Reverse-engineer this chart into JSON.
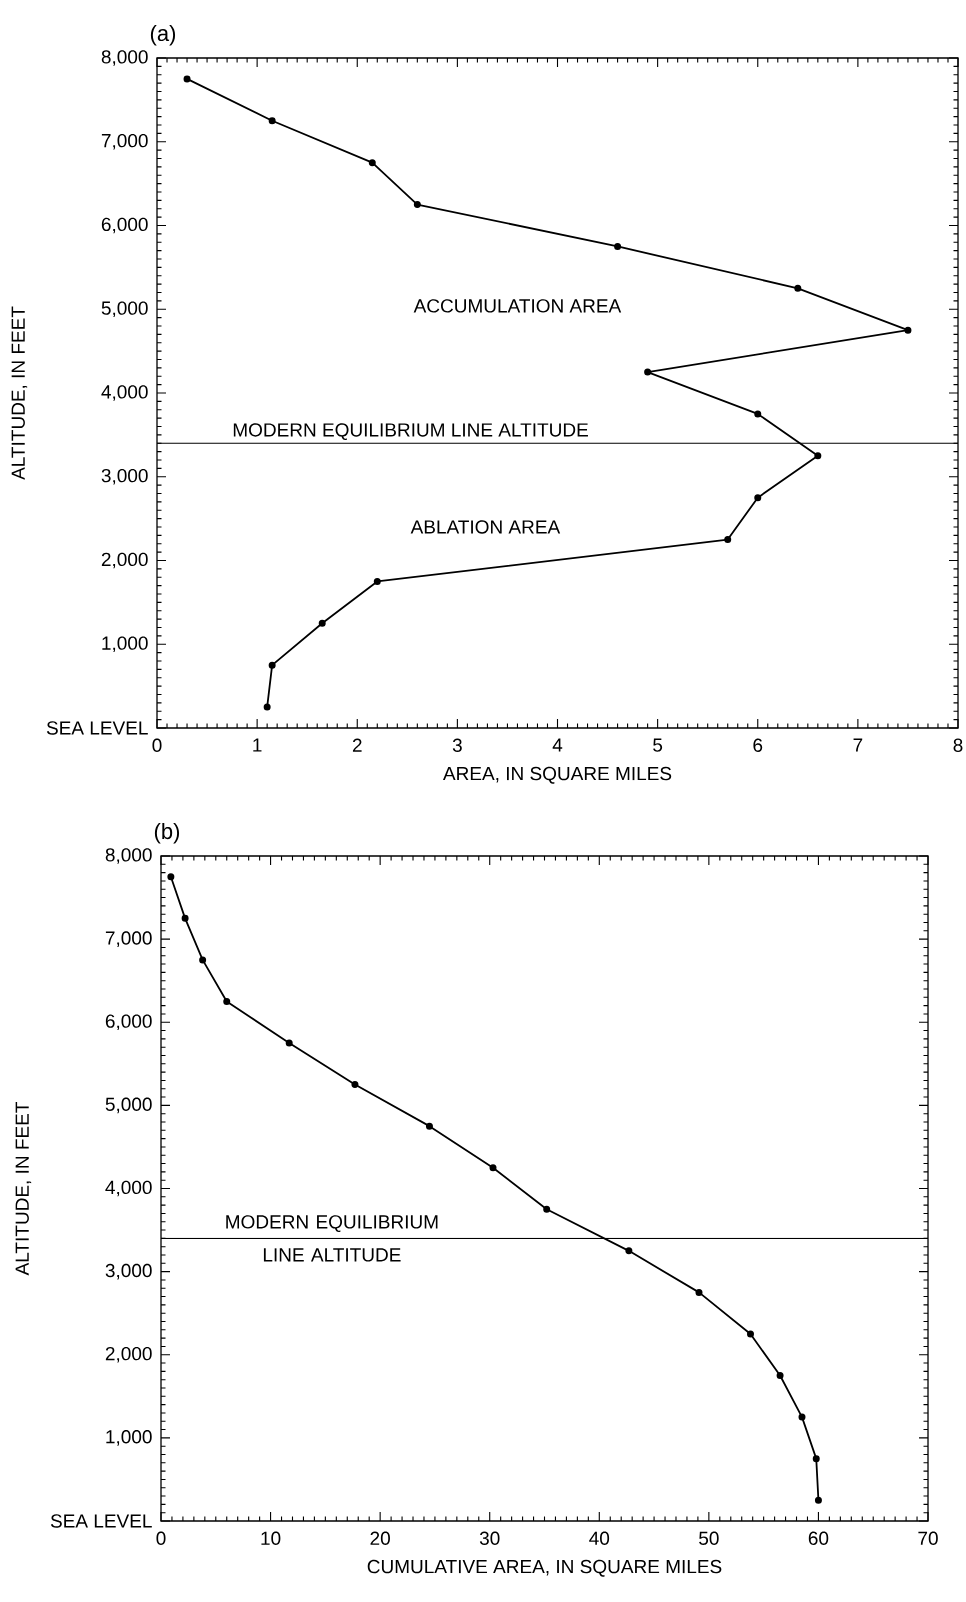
{
  "chart_data": [
    {
      "type": "line",
      "title": "(a)",
      "xlabel": "AREA, IN SQUARE MILES",
      "ylabel": "ALTITUDE, IN FEET",
      "x": [
        0.3,
        1.15,
        2.15,
        2.6,
        4.6,
        6.4,
        7.5,
        4.9,
        6.0,
        6.6,
        6.0,
        5.7,
        2.2,
        1.65,
        1.15,
        1.1
      ],
      "series": [
        {
          "color": "#000000",
          "values": [
            7750,
            7250,
            6750,
            6250,
            5750,
            5250,
            4750,
            4250,
            3750,
            3250,
            2750,
            2250,
            1750,
            1250,
            750,
            250
          ]
        }
      ],
      "xlim": [
        0,
        8
      ],
      "xticks": [
        0,
        1,
        2,
        3,
        4,
        5,
        6,
        7,
        8
      ],
      "ylim": [
        0,
        8000
      ],
      "yticks": [
        {
          "value": 0,
          "label": "SEA LEVEL"
        },
        {
          "value": 1000,
          "label": "1,000"
        },
        {
          "value": 2000,
          "label": "2,000"
        },
        {
          "value": 3000,
          "label": "3,000"
        },
        {
          "value": 4000,
          "label": "4,000"
        },
        {
          "value": 5000,
          "label": "5,000"
        },
        {
          "value": 6000,
          "label": "6,000"
        },
        {
          "value": 7000,
          "label": "7,000"
        },
        {
          "value": 8000,
          "label": "8,000"
        }
      ],
      "ref_lines": [
        {
          "axis": "y",
          "value": 3400,
          "label": "MODERN EQUILIBRIUM LINE ALTITUDE"
        }
      ],
      "annotations": [
        "ACCUMULATION AREA",
        "ABLATION AREA"
      ],
      "marker": "circle",
      "line_style": "solid",
      "grid": false
    },
    {
      "type": "line",
      "title": "(b)",
      "xlabel": "CUMULATIVE AREA, IN SQUARE MILES",
      "ylabel": "ALTITUDE, IN FEET",
      "x": [
        0.9,
        2.2,
        3.8,
        6.0,
        11.7,
        17.7,
        24.5,
        30.3,
        35.2,
        42.7,
        49.1,
        53.8,
        56.5,
        58.5,
        59.8,
        60.0
      ],
      "series": [
        {
          "color": "#000000",
          "values": [
            7750,
            7250,
            6750,
            6250,
            5750,
            5250,
            4750,
            4250,
            3750,
            3250,
            2750,
            2250,
            1750,
            1250,
            750,
            250
          ]
        }
      ],
      "xlim": [
        0,
        70
      ],
      "xticks": [
        0,
        10,
        20,
        30,
        40,
        50,
        60,
        70
      ],
      "ylim": [
        0,
        8000
      ],
      "yticks": [
        {
          "value": 0,
          "label": "SEA LEVEL"
        },
        {
          "value": 1000,
          "label": "1,000"
        },
        {
          "value": 2000,
          "label": "2,000"
        },
        {
          "value": 3000,
          "label": "3,000"
        },
        {
          "value": 4000,
          "label": "4,000"
        },
        {
          "value": 5000,
          "label": "5,000"
        },
        {
          "value": 6000,
          "label": "6,000"
        },
        {
          "value": 7000,
          "label": "7,000"
        },
        {
          "value": 8000,
          "label": "8,000"
        }
      ],
      "ref_lines": [
        {
          "axis": "y",
          "value": 3400,
          "label": "MODERN EQUILIBRIUM LINE ALTITUDE"
        }
      ],
      "marker": "circle",
      "line_style": "solid",
      "grid": false
    }
  ]
}
